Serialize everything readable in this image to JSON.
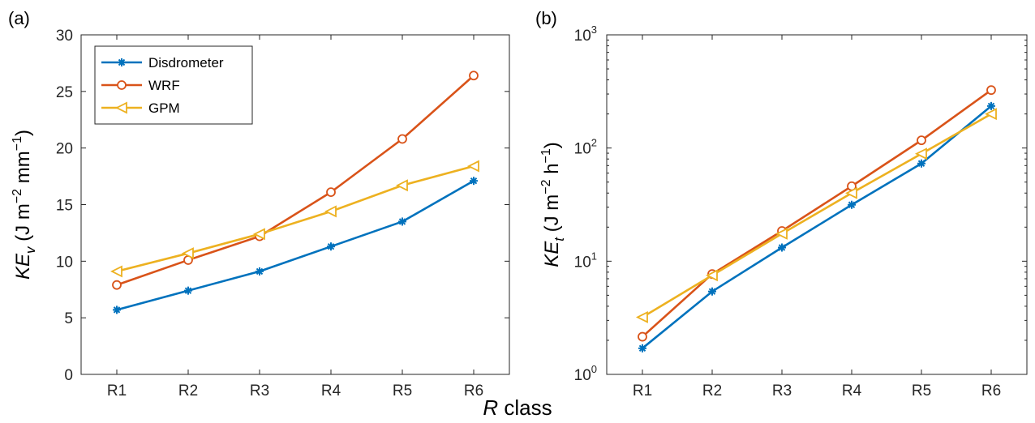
{
  "figure": {
    "shared_xlabel_italic": "R",
    "shared_xlabel_rest": " class"
  },
  "colors": {
    "Disdrometer": "#0072BD",
    "WRF": "#D95319",
    "GPM": "#EDB120"
  },
  "chart_data": [
    {
      "type": "line",
      "panel_label": "(a)",
      "ylabel": {
        "main": "KE",
        "sub": "v",
        "units": "(J m",
        "exp1": "−2",
        "mid": " mm",
        "exp2": "−1",
        "close": ")"
      },
      "categories": [
        "R1",
        "R2",
        "R3",
        "R4",
        "R5",
        "R6"
      ],
      "ylim": [
        0,
        30
      ],
      "yticks": [
        0,
        5,
        10,
        15,
        20,
        25,
        30
      ],
      "yscale": "linear",
      "grid": false,
      "legend": {
        "placement": "top-left",
        "entries": [
          "Disdrometer",
          "WRF",
          "GPM"
        ]
      },
      "series": [
        {
          "name": "Disdrometer",
          "marker": "asterisk",
          "values": [
            5.7,
            7.4,
            9.1,
            11.3,
            13.5,
            17.1
          ]
        },
        {
          "name": "WRF",
          "marker": "circle",
          "values": [
            7.9,
            10.1,
            12.2,
            16.1,
            20.8,
            26.4
          ]
        },
        {
          "name": "GPM",
          "marker": "triangle-left",
          "values": [
            9.1,
            10.7,
            12.4,
            14.4,
            16.7,
            18.4
          ]
        }
      ]
    },
    {
      "type": "line",
      "panel_label": "(b)",
      "ylabel": {
        "main": "KE",
        "sub": "t",
        "units": "(J m",
        "exp1": "−2",
        "mid": " h",
        "exp2": "−1",
        "close": ")"
      },
      "categories": [
        "R1",
        "R2",
        "R3",
        "R4",
        "R5",
        "R6"
      ],
      "ylim": [
        1,
        1000
      ],
      "yticks": [
        1,
        10,
        100,
        1000
      ],
      "yticklabels": [
        {
          "base": "10",
          "exp": "0"
        },
        {
          "base": "10",
          "exp": "1"
        },
        {
          "base": "10",
          "exp": "2"
        },
        {
          "base": "10",
          "exp": "3"
        }
      ],
      "yscale": "log",
      "grid": false,
      "series": [
        {
          "name": "Disdrometer",
          "marker": "asterisk",
          "values": [
            1.7,
            5.4,
            13.2,
            31.5,
            73,
            235
          ]
        },
        {
          "name": "WRF",
          "marker": "circle",
          "values": [
            2.15,
            7.7,
            18.5,
            46,
            117,
            325
          ]
        },
        {
          "name": "GPM",
          "marker": "triangle-left",
          "values": [
            3.2,
            7.5,
            17.5,
            40,
            89,
            200
          ]
        }
      ]
    }
  ]
}
